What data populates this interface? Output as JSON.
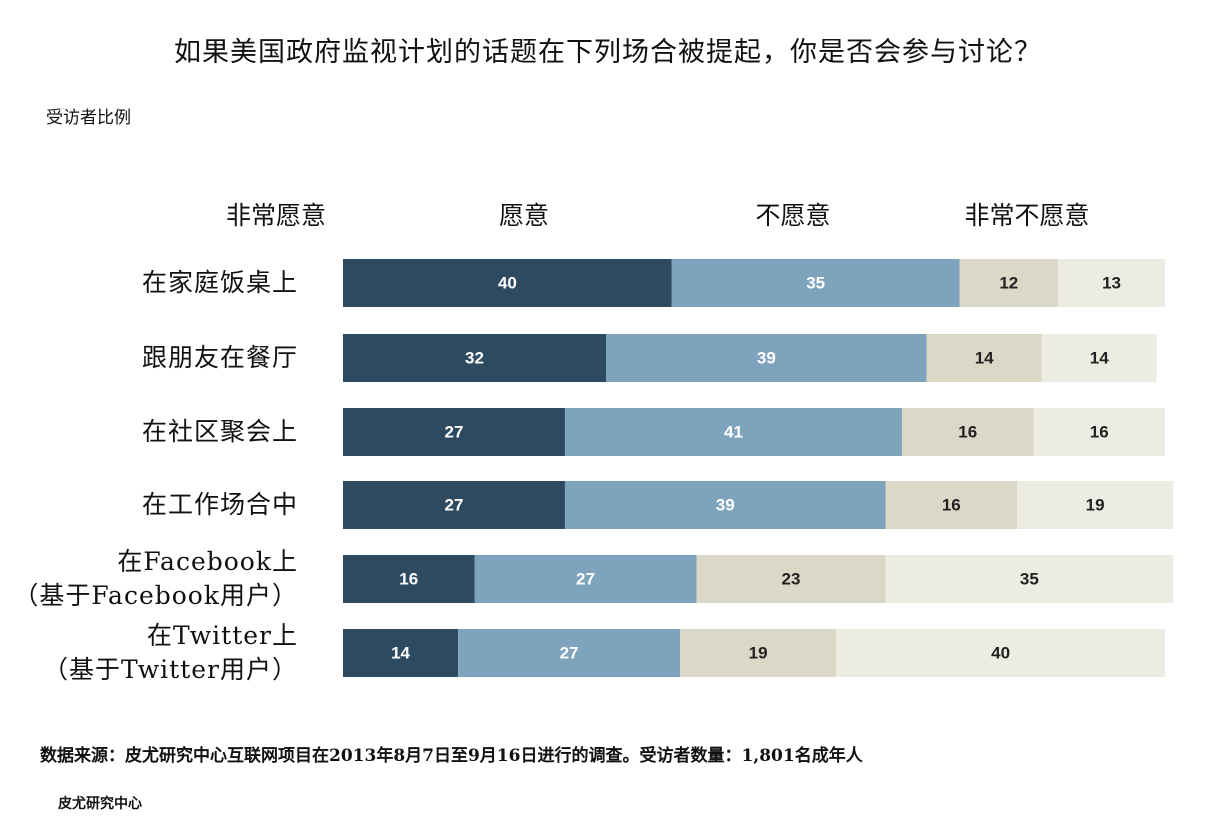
{
  "chart_data": {
    "type": "bar",
    "orientation": "horizontal-stacked",
    "title": "如果美国政府监视计划的话题在下列场合被提起，你是否会参与讨论？",
    "subtitle": "受访者比例",
    "legend_placement": "top",
    "categories": [
      [
        "在家庭饭桌上"
      ],
      [
        "跟朋友在餐厅"
      ],
      [
        "在社区聚会上"
      ],
      [
        "在工作场合中"
      ],
      [
        "在Facebook上",
        "（基于Facebook用户）"
      ],
      [
        "在Twitter上",
        "（基于Twitter用户）"
      ]
    ],
    "series": [
      {
        "name": "非常愿意",
        "color": "#2e4a60",
        "label_color": "#ffffff",
        "values": [
          40,
          32,
          27,
          27,
          16,
          14
        ]
      },
      {
        "name": "愿意",
        "color": "#7ea3bd",
        "label_color": "#ffffff",
        "values": [
          35,
          39,
          41,
          39,
          27,
          27
        ]
      },
      {
        "name": "不愿意",
        "color": "#dcd8c7",
        "label_color": "#222222",
        "values": [
          12,
          14,
          16,
          16,
          23,
          19
        ]
      },
      {
        "name": "非常不愿意",
        "color": "#edece3",
        "label_color": "#222222",
        "values": [
          13,
          14,
          16,
          19,
          35,
          40
        ]
      }
    ],
    "xlim": [
      0,
      100
    ],
    "grid": false
  },
  "footer": {
    "source": "数据来源：皮尤研究中心互联网项目在2013年8月7日至9月16日进行的调查。受访者数量：1,801名成年人",
    "org": "皮尤研究中心"
  }
}
